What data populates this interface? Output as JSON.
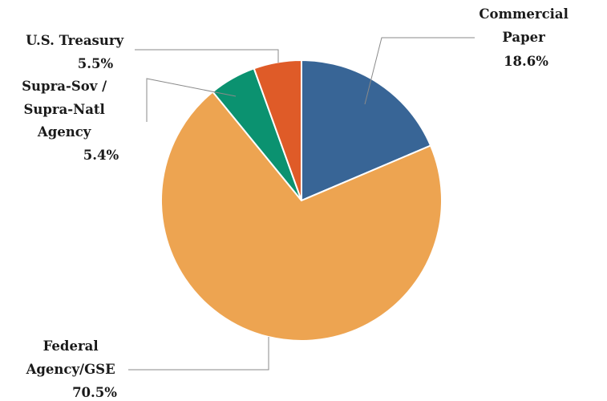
{
  "chart_data": {
    "type": "pie",
    "start_angle_deg": 0,
    "direction": "clockwise",
    "slices": [
      {
        "name_lines": [
          "Commercial",
          "Paper"
        ],
        "value_label": "18.6%",
        "value": 18.6,
        "color": "#386596"
      },
      {
        "name_lines": [
          "Federal",
          "Agency/GSE"
        ],
        "value_label": "70.5%",
        "value": 70.5,
        "color": "#eda451"
      },
      {
        "name_lines": [
          "Supra-Sov /",
          "Supra-Natl",
          "Agency"
        ],
        "value_label": "5.4%",
        "value": 5.4,
        "color": "#0b9270"
      },
      {
        "name_lines": [
          "U.S. Treasury"
        ],
        "value_label": "5.5%",
        "value": 5.5,
        "color": "#df5b28"
      }
    ],
    "legend": "none"
  }
}
